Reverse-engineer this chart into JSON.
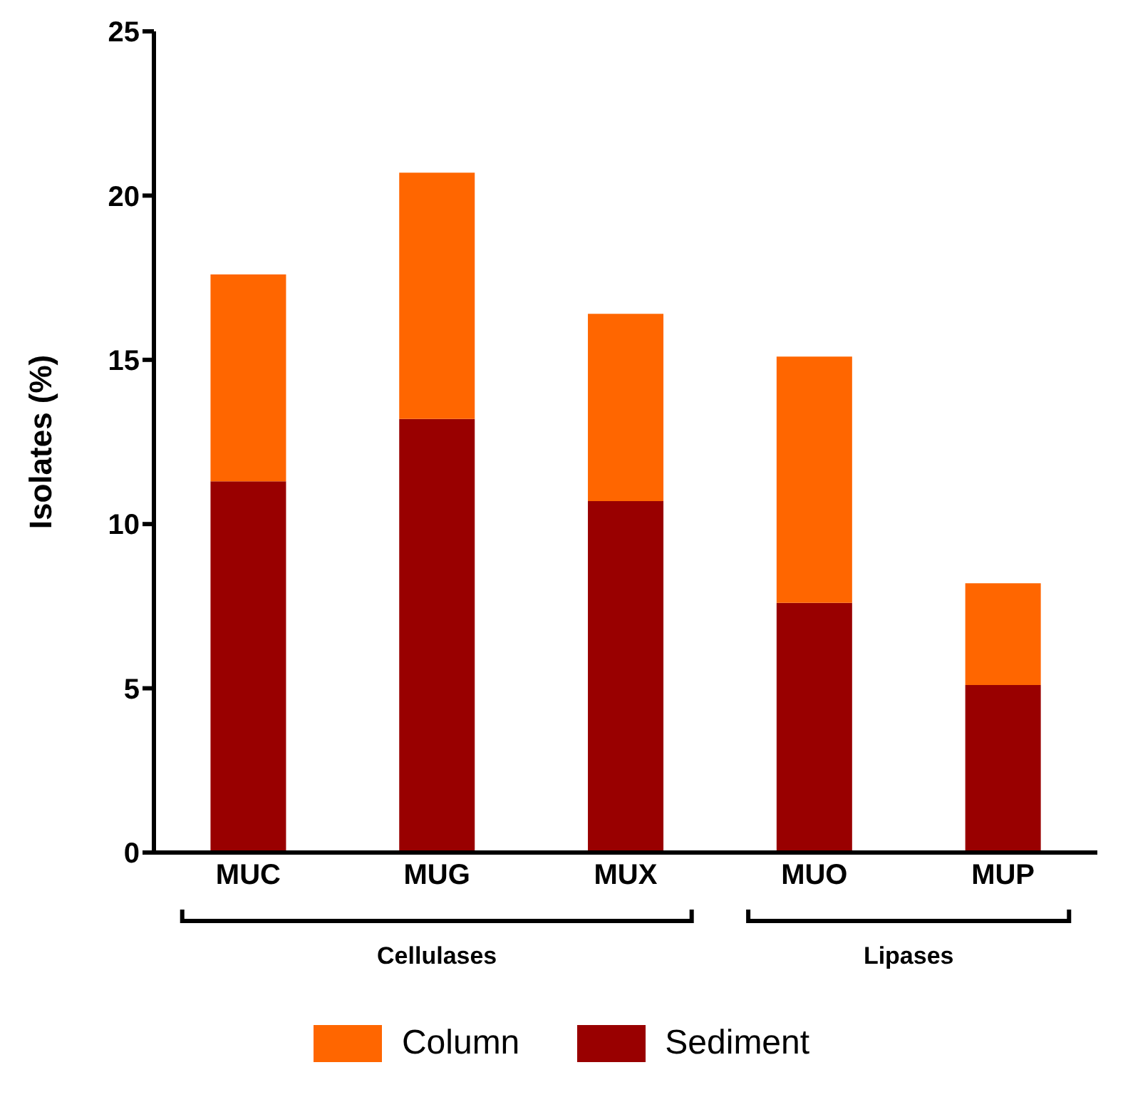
{
  "chart_data": {
    "type": "bar",
    "stacked": true,
    "ylabel": "Isolates (%)",
    "categories": [
      "MUC",
      "MUG",
      "MUX",
      "MUO",
      "MUP"
    ],
    "series": [
      {
        "name": "Sediment",
        "color": "#990000",
        "values": [
          11.3,
          13.2,
          10.7,
          7.6,
          5.1
        ]
      },
      {
        "name": "Column",
        "color": "#ff6600",
        "values": [
          6.3,
          7.5,
          5.7,
          7.5,
          3.1
        ]
      }
    ],
    "ylim": [
      0,
      25
    ],
    "yticks": [
      0,
      5,
      10,
      15,
      20,
      25
    ],
    "legend": "bottom",
    "annotations": [
      "Cellulases",
      "Lipases"
    ]
  }
}
